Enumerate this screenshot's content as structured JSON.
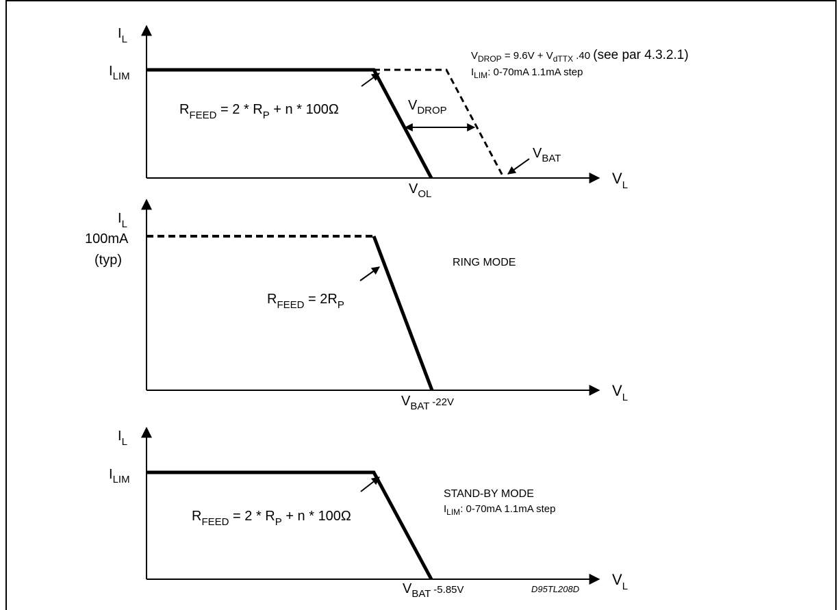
{
  "panel1": {
    "y_axis": {
      "main": "I",
      "sub": "L"
    },
    "x_axis": {
      "main": "V",
      "sub": "L"
    },
    "ilim": {
      "main": "I",
      "sub": "LIM"
    },
    "rfeed": {
      "main": "R",
      "sub": "FEED",
      "rest1": " = 2 * R",
      "sub2": "P",
      "rest2": " + n * 100Ω"
    },
    "vdrop_arrow": {
      "main": "V",
      "sub": "DROP"
    },
    "vbat": {
      "main": "V",
      "sub": "BAT"
    },
    "vol": {
      "main": "V",
      "sub": "OL"
    },
    "note1": {
      "v": "V",
      "vsub": "DROP",
      "mid": " = 9.6V + V",
      "vsub2": "dTTX",
      "tail": " .40 ",
      "big": "(see par 4.3.2.1)"
    },
    "note2": {
      "i": "I",
      "isub": "LIM",
      "tail": ": 0-70mA 1.1mA step"
    }
  },
  "panel2": {
    "y_axis": {
      "main": "I",
      "sub": "L"
    },
    "x_axis": {
      "main": "V",
      "sub": "L"
    },
    "level": "100mA",
    "level_note": "(typ)",
    "mode": "RING MODE",
    "rfeed": {
      "main": "R",
      "sub": "FEED",
      "rest1": " = 2R",
      "sub2": "P"
    },
    "vbat": {
      "main": "V",
      "sub": "BAT",
      "tail": " -22V"
    }
  },
  "panel3": {
    "y_axis": {
      "main": "I",
      "sub": "L"
    },
    "x_axis": {
      "main": "V",
      "sub": "L"
    },
    "ilim": {
      "main": "I",
      "sub": "LIM"
    },
    "mode": "STAND-BY MODE",
    "note": {
      "i": "I",
      "isub": "LIM",
      "tail": ": 0-70mA 1.1mA step"
    },
    "rfeed": {
      "main": "R",
      "sub": "FEED",
      "rest1": " = 2 * R",
      "sub2": "P",
      "rest2": " + n * 100Ω"
    },
    "vbat": {
      "main": "V",
      "sub": "BAT",
      "tail": " -5.85V"
    },
    "code": "D95TL208D"
  }
}
